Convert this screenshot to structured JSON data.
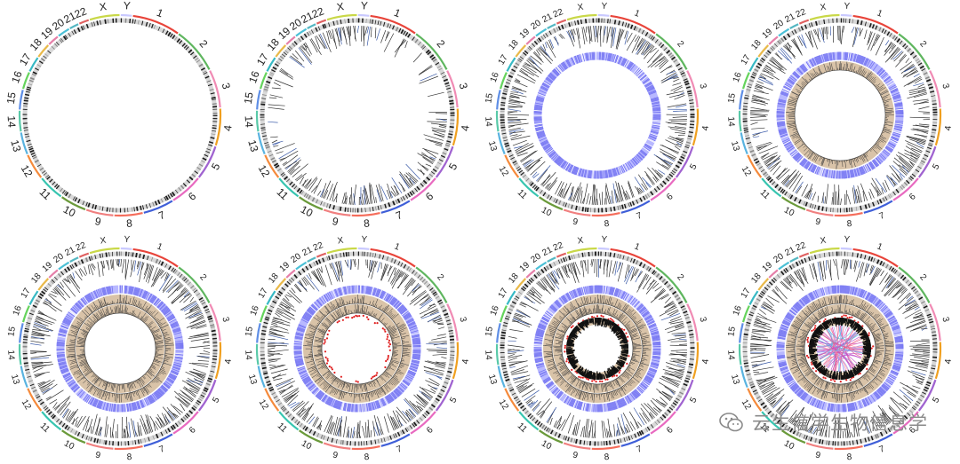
{
  "panels": [
    {
      "id": "panel-1",
      "tracks": [],
      "links": false
    },
    {
      "id": "panel-2",
      "tracks": [
        "labels"
      ],
      "links": false
    },
    {
      "id": "panel-3",
      "tracks": [
        "labels",
        "heatmap"
      ],
      "links": false
    },
    {
      "id": "panel-4",
      "tracks": [
        "labels",
        "heatmap",
        "histogram"
      ],
      "links": false
    },
    {
      "id": "panel-5",
      "tracks": [
        "labels",
        "heatmap",
        "histogram",
        "histogram"
      ],
      "links": false
    },
    {
      "id": "panel-6",
      "tracks": [
        "labels",
        "heatmap",
        "histogram",
        "histogram",
        "red-points"
      ],
      "links": false
    },
    {
      "id": "panel-7",
      "tracks": [
        "labels",
        "heatmap",
        "histogram",
        "histogram",
        "red-points",
        "black-bars"
      ],
      "links": false
    },
    {
      "id": "panel-8",
      "tracks": [
        "labels",
        "heatmap",
        "histogram",
        "histogram",
        "red-points",
        "black-bars"
      ],
      "links": true
    }
  ],
  "chromosomes": [
    {
      "name": "1",
      "color": "#e8443a",
      "size": 249
    },
    {
      "name": "2",
      "color": "#5fb65f",
      "size": 243
    },
    {
      "name": "3",
      "color": "#f08bb4",
      "size": 198
    },
    {
      "name": "4",
      "color": "#f0a020",
      "size": 191
    },
    {
      "name": "5",
      "color": "#a063d0",
      "size": 181
    },
    {
      "name": "6",
      "color": "#e86ac0",
      "size": 171
    },
    {
      "name": "7",
      "color": "#3f5fd8",
      "size": 159
    },
    {
      "name": "8",
      "color": "#f56d5b",
      "size": 146
    },
    {
      "name": "9",
      "color": "#f07f7f",
      "size": 141
    },
    {
      "name": "10",
      "color": "#6a9a3a",
      "size": 136
    },
    {
      "name": "11",
      "color": "#37c5b0",
      "size": 135
    },
    {
      "name": "12",
      "color": "#f58a3b",
      "size": 134
    },
    {
      "name": "13",
      "color": "#59b3e0",
      "size": 115
    },
    {
      "name": "14",
      "color": "#59c9a8",
      "size": 107
    },
    {
      "name": "15",
      "color": "#5e8ee6",
      "size": 102
    },
    {
      "name": "16",
      "color": "#65d35c",
      "size": 90
    },
    {
      "name": "17",
      "color": "#37b9c4",
      "size": 81
    },
    {
      "name": "18",
      "color": "#e9b94a",
      "size": 78
    },
    {
      "name": "19",
      "color": "#e57fa8",
      "size": 59
    },
    {
      "name": "20",
      "color": "#4bc0d6",
      "size": 64
    },
    {
      "name": "21",
      "color": "#55b7c2",
      "size": 48
    },
    {
      "name": "22",
      "color": "#e06060",
      "size": 51
    },
    {
      "name": "X",
      "color": "#c9d848",
      "size": 155
    },
    {
      "name": "Y",
      "color": "#c9c9ff",
      "size": 57
    }
  ],
  "colors": {
    "ideogram_band": "#1a1a1a",
    "ideogram_light": "#d8d8d8",
    "label_text": "#222222",
    "gene_label": "#333333",
    "heatmap_blue": "#6f6ff0",
    "heatmap_light": "#b8b8ff",
    "histogram_fill": "#d9c3a8",
    "histogram_line": "#333333",
    "red_points": "#e02020",
    "links": [
      "#e85a8a",
      "#9fa0f0",
      "#4fbfe0",
      "#c04ac8",
      "#ff8aa6"
    ]
  },
  "watermark": {
    "icon": "wechat-icon",
    "text": "云生信学生物信息学"
  }
}
